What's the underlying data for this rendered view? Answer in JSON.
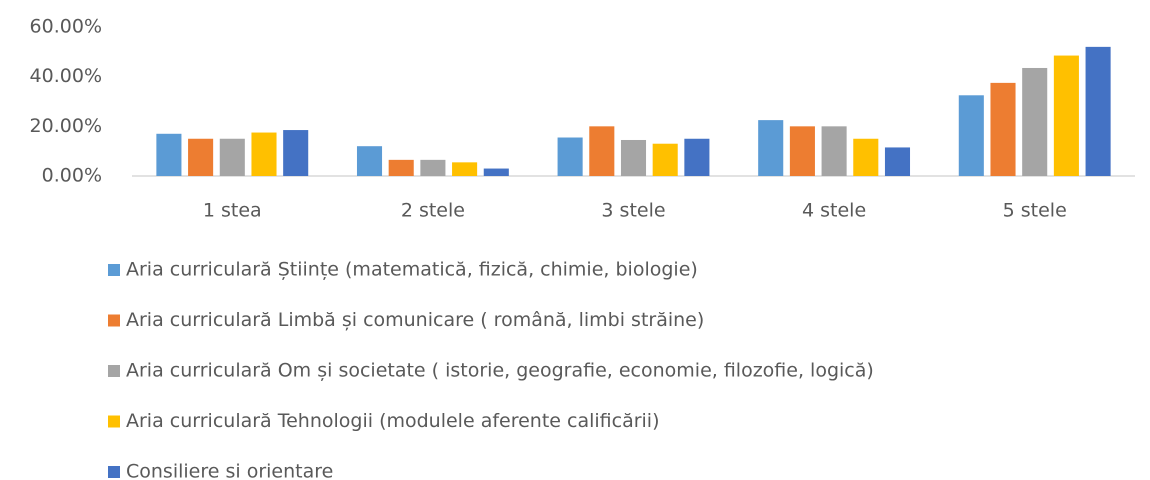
{
  "chart_data": {
    "type": "bar",
    "categories": [
      "1 stea",
      "2 stele",
      "3 stele",
      "4 stele",
      "5 stele"
    ],
    "series": [
      {
        "name": "Aria curriculară Științe (matematică, fizică, chimie, biologie)",
        "color": "#5b9bd5",
        "values": [
          17,
          12,
          15.5,
          22.5,
          32.5
        ]
      },
      {
        "name": "Aria curriculară Limbă și comunicare ( română, limbi străine)",
        "color": "#ed7d31",
        "values": [
          15,
          6.5,
          20,
          20,
          37.5
        ]
      },
      {
        "name": "Aria curriculară Om și societate ( istorie, geografie, economie, filozofie, logică)",
        "color": "#a5a5a5",
        "values": [
          15,
          6.5,
          14.5,
          20,
          43.5
        ]
      },
      {
        "name": "Aria curriculară Tehnologii (modulele aferente calificării)",
        "color": "#ffc000",
        "values": [
          17.5,
          5.5,
          13,
          15,
          48.5
        ]
      },
      {
        "name": "Consiliere si orientare",
        "color": "#4472c4",
        "values": [
          18.5,
          3,
          15,
          11.5,
          52
        ]
      }
    ],
    "ylim": [
      0,
      60
    ],
    "yticks": [
      {
        "value": 0,
        "label": "0.00%"
      },
      {
        "value": 20,
        "label": "20.00%"
      },
      {
        "value": 40,
        "label": "40.00%"
      },
      {
        "value": 60,
        "label": "60.00%"
      }
    ],
    "grid": false,
    "legend": "bottom"
  }
}
